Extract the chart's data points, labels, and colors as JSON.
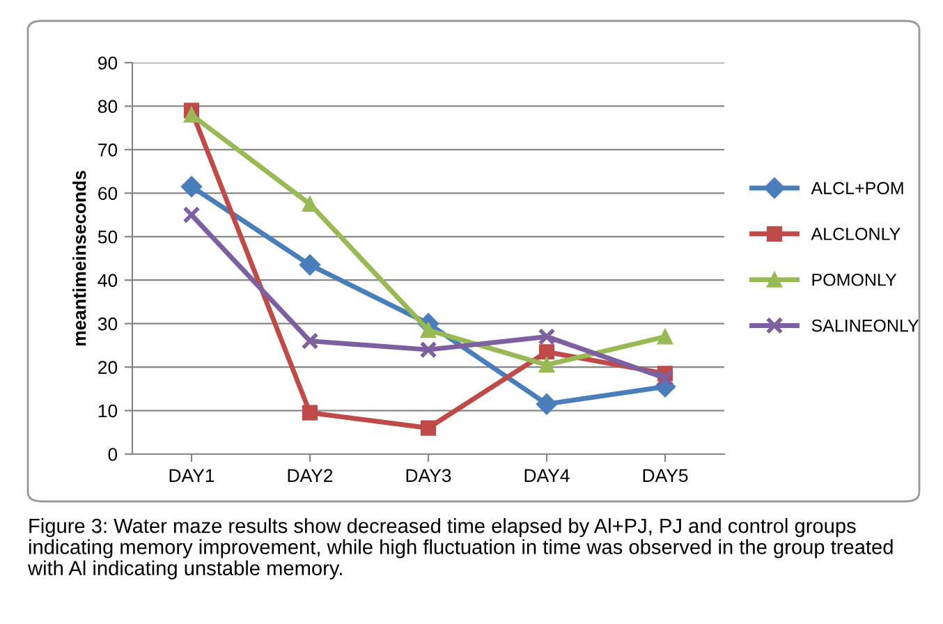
{
  "chart_data": {
    "type": "line",
    "ylabel": "meantimeinseconds",
    "categories": [
      "DAY1",
      "DAY2",
      "DAY3",
      "DAY4",
      "DAY5"
    ],
    "series": [
      {
        "name": "ALCL+POM",
        "color": "#4a7ebb",
        "marker": "diamond",
        "values": [
          61.5,
          43.5,
          30,
          11.5,
          15.5
        ]
      },
      {
        "name": "ALCLONLY",
        "color": "#be4b48",
        "marker": "square",
        "values": [
          79,
          9.5,
          6,
          23.5,
          18.5
        ]
      },
      {
        "name": "POMONLY",
        "color": "#98b954",
        "marker": "triangle",
        "values": [
          78,
          57.5,
          28.5,
          20.5,
          27
        ]
      },
      {
        "name": "SALINEONLY",
        "color": "#7d60a0",
        "marker": "cross",
        "values": [
          55,
          26,
          24,
          27,
          17.5
        ]
      }
    ],
    "ylim": [
      0,
      90
    ],
    "yticks": [
      0,
      10,
      20,
      30,
      40,
      50,
      60,
      70,
      80,
      90
    ],
    "grid": "y",
    "legend": "right",
    "line_style": "solid",
    "annotations": [
      "Figure 3: Water maze results show decreased time elapsed by Al+PJ, PJ and control groups indicating memory improvement, while high fluctuation in time was observed in the group treated with Al indicating unstable memory."
    ]
  }
}
